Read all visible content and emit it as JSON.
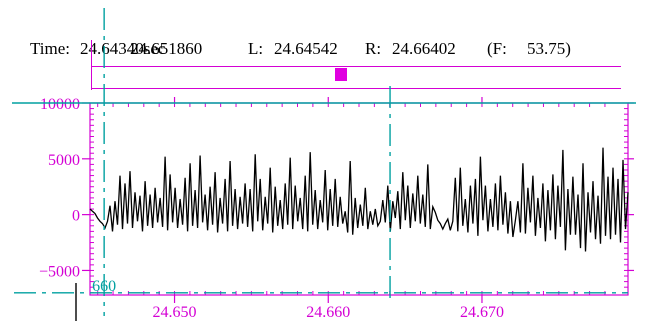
{
  "header": {
    "time_label": "Time:",
    "time_value": "24.64340sec",
    "overlap_value": "24.651860",
    "left_label": "L:",
    "left_value": "24.64542",
    "right_label": "R:",
    "right_value": "24.66402",
    "freq_label": "(F:",
    "freq_value": "53.75)"
  },
  "cursor_readout": "660",
  "colors": {
    "frame": "#d400d4",
    "cursor": "#00a0a0",
    "waveform": "#000000"
  },
  "chart_data": {
    "type": "line",
    "xlim": [
      24.6445,
      24.6795
    ],
    "ylim": [
      -7200,
      10000
    ],
    "x_ticks": [
      24.65,
      24.66,
      24.67
    ],
    "x_tick_labels": [
      "24.650",
      "24.660",
      "24.670"
    ],
    "y_ticks": [
      10000,
      5000,
      0,
      -5000
    ],
    "y_tick_labels": [
      "10000",
      "5000",
      "0",
      "−5000"
    ],
    "cursors": {
      "left": 24.64542,
      "right": 24.66402,
      "baseline_y": -7000
    },
    "series": [
      {
        "values": [
          500,
          300,
          100,
          -300,
          -600,
          -800,
          -1200,
          -600,
          800,
          -1500,
          1200,
          -900,
          3500,
          -1300,
          2800,
          -800,
          3900,
          -1200,
          2000,
          -600,
          1700,
          -1500,
          3000,
          -1000,
          1800,
          -1200,
          2400,
          -700,
          1500,
          -1100,
          5200,
          -1400,
          3600,
          -700,
          2400,
          -1200,
          1400,
          -900,
          3300,
          -1500,
          4600,
          -1000,
          2200,
          -1200,
          5300,
          -700,
          1800,
          -1400,
          2500,
          -900,
          3800,
          -1600,
          1500,
          -800,
          3200,
          -1500,
          4800,
          -1000,
          2300,
          -1300,
          1600,
          -800,
          2800,
          -1100,
          2300,
          -1500,
          5400,
          -600,
          3200,
          -1400,
          1600,
          -800,
          4200,
          -1600,
          2500,
          -1000,
          1300,
          -1300,
          2800,
          -900,
          5100,
          -1300,
          2600,
          -600,
          1500,
          -1300,
          3500,
          -1500,
          5600,
          -900,
          2200,
          -1300,
          1300,
          -700,
          4000,
          -1400,
          2300,
          -1000,
          3200,
          -1100,
          1600,
          -800,
          300,
          -1600,
          4800,
          -1800,
          1500,
          -1200,
          900,
          -1000,
          2400,
          -1300,
          300,
          -900,
          500,
          -1000,
          -600,
          1300,
          -700,
          2600,
          -1500,
          1200,
          -300,
          2100,
          -1300,
          3800,
          -500,
          2600,
          -1200,
          1900,
          -600,
          3500,
          -800,
          1800,
          -1100,
          4500,
          -1300,
          700,
          200,
          -500,
          -800,
          -1300,
          -800,
          -400,
          -1400,
          -600,
          3300,
          -1500,
          4200,
          -1000,
          1400,
          -1600,
          2600,
          -800,
          3200,
          -1900,
          5200,
          -500,
          2600,
          -1500,
          1400,
          -1100,
          2800,
          -1400,
          3500,
          -900,
          2000,
          -1700,
          1200,
          -2000,
          -500,
          1200,
          -1600,
          4600,
          -1700,
          2400,
          -700,
          3500,
          -1900,
          1500,
          -1200,
          2800,
          -2400,
          2200,
          -1400,
          3600,
          -2200,
          2600,
          -1100,
          5800,
          -3200,
          2300,
          -1800,
          3400,
          -1800,
          1800,
          -3000,
          4600,
          -3300,
          2000,
          -1600,
          3000,
          -2200,
          1700,
          -2600,
          6000,
          -1900,
          3400,
          -2200,
          4200,
          -1800,
          3200,
          -2500,
          4900,
          -1300,
          2000
        ]
      }
    ]
  }
}
